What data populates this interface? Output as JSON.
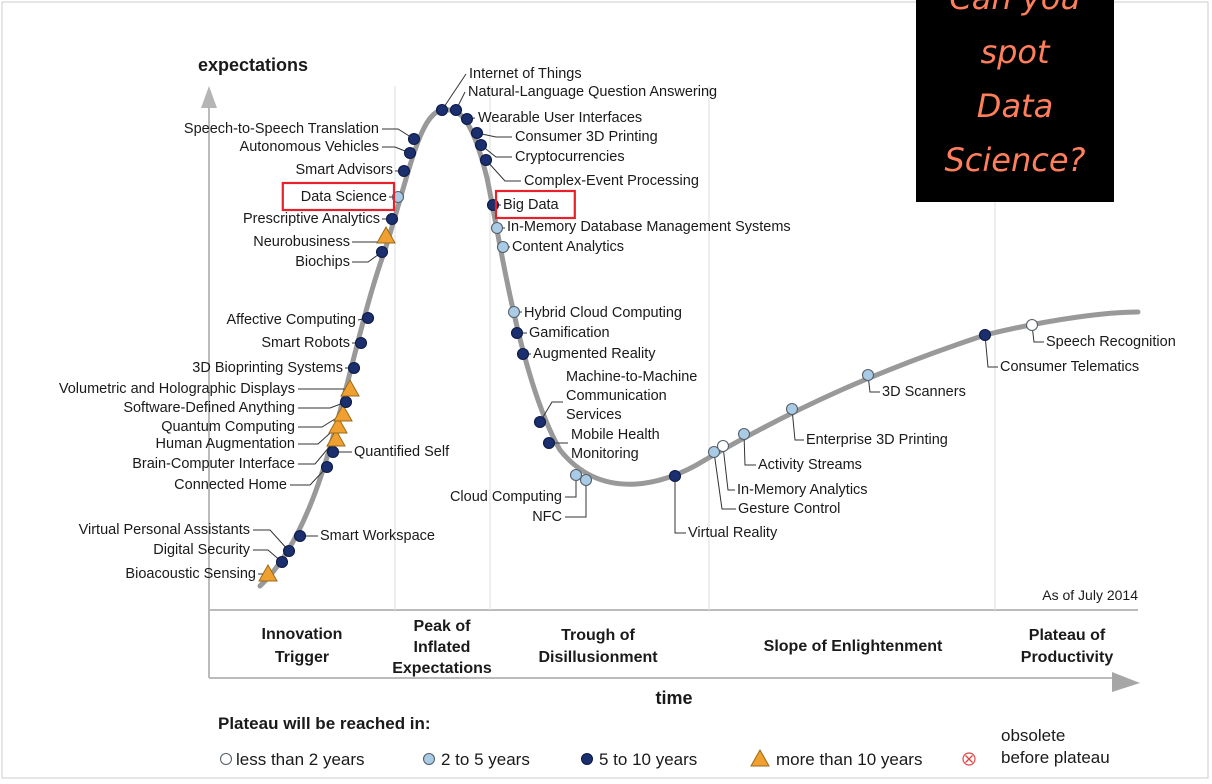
{
  "chart_data": {
    "type": "hype-cycle",
    "y_axis_label": "expectations",
    "x_axis_label": "time",
    "as_of": "As of July 2014",
    "phases": [
      "Innovation Trigger",
      "Peak of Inflated Expectations",
      "Trough of Disillusionment",
      "Slope of Enlightenment",
      "Plateau of Productivity"
    ],
    "phase_lines": [
      [
        "Innovation",
        "Trigger"
      ],
      [
        "Peak of",
        "Inflated",
        "Expectations"
      ],
      [
        "Trough of",
        "Disillusionment"
      ],
      [
        "Slope of Enlightenment"
      ],
      [
        "Plateau of",
        "Productivity"
      ]
    ],
    "legend_title": "Plateau will be reached in:",
    "legend": [
      {
        "key": "lt2",
        "label": "less than 2 years"
      },
      {
        "key": "2to5",
        "label": "2 to 5 years"
      },
      {
        "key": "5to10",
        "label": "5 to 10 years"
      },
      {
        "key": "gt10",
        "label": "more than 10 years"
      },
      {
        "key": "obsolete",
        "label_lines": [
          "obsolete",
          "before plateau"
        ]
      }
    ],
    "technologies": [
      {
        "name": "Bioacoustic Sensing",
        "category": "gt10"
      },
      {
        "name": "Digital Security",
        "category": "5to10"
      },
      {
        "name": "Virtual Personal Assistants",
        "category": "5to10"
      },
      {
        "name": "Smart Workspace",
        "category": "5to10"
      },
      {
        "name": "Connected Home",
        "category": "5to10"
      },
      {
        "name": "Quantified Self",
        "category": "5to10"
      },
      {
        "name": "Brain-Computer Interface",
        "category": "gt10"
      },
      {
        "name": "Human Augmentation",
        "category": "gt10"
      },
      {
        "name": "Quantum Computing",
        "category": "gt10"
      },
      {
        "name": "Software-Defined Anything",
        "category": "5to10"
      },
      {
        "name": "Volumetric and Holographic Displays",
        "category": "gt10"
      },
      {
        "name": "3D Bioprinting Systems",
        "category": "5to10"
      },
      {
        "name": "Smart Robots",
        "category": "5to10"
      },
      {
        "name": "Affective Computing",
        "category": "5to10"
      },
      {
        "name": "Biochips",
        "category": "5to10"
      },
      {
        "name": "Neurobusiness",
        "category": "gt10"
      },
      {
        "name": "Prescriptive Analytics",
        "category": "5to10"
      },
      {
        "name": "Data Science",
        "category": "2to5",
        "highlight": true
      },
      {
        "name": "Smart Advisors",
        "category": "5to10"
      },
      {
        "name": "Autonomous Vehicles",
        "category": "5to10"
      },
      {
        "name": "Speech-to-Speech Translation",
        "category": "5to10"
      },
      {
        "name": "Internet of Things",
        "category": "5to10"
      },
      {
        "name": "Natural-Language Question Answering",
        "category": "5to10"
      },
      {
        "name": "Wearable User Interfaces",
        "category": "5to10"
      },
      {
        "name": "Consumer 3D Printing",
        "category": "5to10"
      },
      {
        "name": "Cryptocurrencies",
        "category": "5to10"
      },
      {
        "name": "Complex-Event Processing",
        "category": "5to10"
      },
      {
        "name": "Big Data",
        "category": "5to10",
        "highlight": true
      },
      {
        "name": "In-Memory Database Management Systems",
        "category": "2to5"
      },
      {
        "name": "Content Analytics",
        "category": "2to5"
      },
      {
        "name": "Hybrid Cloud Computing",
        "category": "2to5"
      },
      {
        "name": "Gamification",
        "category": "5to10"
      },
      {
        "name": "Augmented Reality",
        "category": "5to10"
      },
      {
        "name": "Machine-to-Machine Communication Services",
        "category": "5to10",
        "label_lines": [
          "Machine-to-Machine",
          "Communication",
          "Services"
        ]
      },
      {
        "name": "Mobile Health Monitoring",
        "category": "5to10",
        "label_lines": [
          "Mobile Health",
          "Monitoring"
        ]
      },
      {
        "name": "Cloud Computing",
        "category": "2to5"
      },
      {
        "name": "NFC",
        "category": "2to5"
      },
      {
        "name": "Virtual Reality",
        "category": "5to10"
      },
      {
        "name": "Gesture Control",
        "category": "2to5"
      },
      {
        "name": "In-Memory Analytics",
        "category": "lt2"
      },
      {
        "name": "Activity Streams",
        "category": "2to5"
      },
      {
        "name": "Enterprise 3D Printing",
        "category": "2to5"
      },
      {
        "name": "3D Scanners",
        "category": "2to5"
      },
      {
        "name": "Consumer Telematics",
        "category": "5to10"
      },
      {
        "name": "Speech Recognition",
        "category": "lt2"
      }
    ]
  },
  "colors": {
    "curve": "#999999",
    "lt2": "#ffffff",
    "2to5": "#a9cbe6",
    "5to10": "#1b2f6e",
    "gt10": "#f0a030",
    "highlight_box": "#e8202a",
    "callout_bg": "#000000",
    "callout_text": "#ff7f5c"
  },
  "callout": {
    "lines": [
      "Can you",
      "spot",
      "Data",
      "Science?"
    ]
  }
}
